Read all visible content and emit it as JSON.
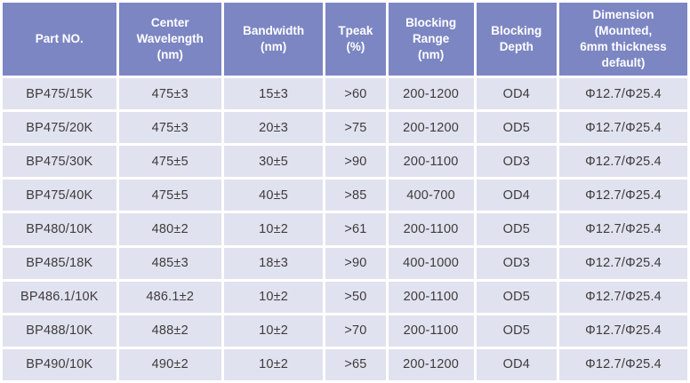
{
  "colors": {
    "header_bg": "#7c86c3",
    "header_text": "#ffffff",
    "row_bg": "#e1e2ef",
    "body_text": "#3c3c3c",
    "grid": "#ffffff"
  },
  "table": {
    "columns": [
      {
        "label": "Part NO."
      },
      {
        "label": "Center\nWavelength\n(nm)"
      },
      {
        "label": "Bandwidth\n(nm)"
      },
      {
        "label": "Tpeak\n(%)"
      },
      {
        "label": "Blocking\nRange\n(nm)"
      },
      {
        "label": "Blocking\nDepth"
      },
      {
        "label": "Dimension\n(Mounted,\n6mm thickness\ndefault)"
      }
    ],
    "rows": [
      [
        "BP475/15K",
        "475±3",
        "15±3",
        ">60",
        "200-1200",
        "OD4",
        "Φ12.7/Φ25.4"
      ],
      [
        "BP475/20K",
        "475±3",
        "20±3",
        ">75",
        "200-1200",
        "OD5",
        "Φ12.7/Φ25.4"
      ],
      [
        "BP475/30K",
        "475±5",
        "30±5",
        ">90",
        "200-1100",
        "OD3",
        "Φ12.7/Φ25.4"
      ],
      [
        "BP475/40K",
        "475±5",
        "40±5",
        ">85",
        "400-700",
        "OD4",
        "Φ12.7/Φ25.4"
      ],
      [
        "BP480/10K",
        "480±2",
        "10±2",
        ">61",
        "200-1100",
        "OD5",
        "Φ12.7/Φ25.4"
      ],
      [
        "BP485/18K",
        "485±3",
        "18±3",
        ">90",
        "400-1000",
        "OD3",
        "Φ12.7/Φ25.4"
      ],
      [
        "BP486.1/10K",
        "486.1±2",
        "10±2",
        ">50",
        "200-1100",
        "OD5",
        "Φ12.7/Φ25.4"
      ],
      [
        "BP488/10K",
        "488±2",
        "10±2",
        ">70",
        "200-1100",
        "OD5",
        "Φ12.7/Φ25.4"
      ],
      [
        "BP490/10K",
        "490±2",
        "10±2",
        ">65",
        "200-1200",
        "OD4",
        "Φ12.7/Φ25.4"
      ]
    ]
  }
}
